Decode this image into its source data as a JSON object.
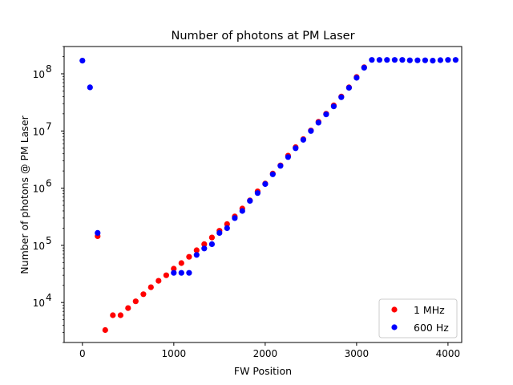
{
  "chart_data": {
    "type": "scatter",
    "title": "Number of photons at PM Laser",
    "xlabel": "FW Position",
    "ylabel": "Number of photons @ PM Laser",
    "xlim": [
      -200,
      4150
    ],
    "ylim": [
      2000,
      300000000
    ],
    "yscale": "log",
    "grid": false,
    "legend_position": "bottom-right",
    "x_ticks": [
      {
        "value": 0,
        "label": "0"
      },
      {
        "value": 1000,
        "label": "1000"
      },
      {
        "value": 2000,
        "label": "2000"
      },
      {
        "value": 3000,
        "label": "3000"
      },
      {
        "value": 4000,
        "label": "4000"
      }
    ],
    "y_ticks": [
      {
        "value": 10000,
        "label": "10",
        "exp": "4"
      },
      {
        "value": 100000,
        "label": "10",
        "exp": "5"
      },
      {
        "value": 1000000,
        "label": "10",
        "exp": "6"
      },
      {
        "value": 10000000,
        "label": "10",
        "exp": "7"
      },
      {
        "value": 100000000,
        "label": "10",
        "exp": "8"
      }
    ],
    "series": [
      {
        "name": "1 MHz",
        "color": "#ff0000",
        "points": [
          [
            167,
            145000
          ],
          [
            250,
            3300
          ],
          [
            333,
            6000
          ],
          [
            417,
            6000
          ],
          [
            500,
            8000
          ],
          [
            583,
            10500
          ],
          [
            667,
            14000
          ],
          [
            750,
            18500
          ],
          [
            833,
            24000
          ],
          [
            917,
            30000
          ],
          [
            1000,
            39000
          ],
          [
            1083,
            49000
          ],
          [
            1167,
            63000
          ],
          [
            1250,
            82000
          ],
          [
            1333,
            105000
          ],
          [
            1417,
            137000
          ],
          [
            1500,
            180000
          ],
          [
            1583,
            235000
          ],
          [
            1667,
            320000
          ],
          [
            1750,
            440000
          ],
          [
            1833,
            610000
          ],
          [
            1917,
            880000
          ],
          [
            2000,
            1200000
          ],
          [
            2083,
            1800000
          ],
          [
            2167,
            2500000
          ],
          [
            2250,
            3700000
          ],
          [
            2333,
            5200000
          ],
          [
            2417,
            7200000
          ],
          [
            2500,
            10200000
          ],
          [
            2583,
            14500000
          ],
          [
            2667,
            20000000
          ],
          [
            2750,
            28000000
          ],
          [
            2833,
            40000000
          ],
          [
            2917,
            58000000
          ],
          [
            3000,
            88000000
          ],
          [
            3083,
            130000000
          ]
        ]
      },
      {
        "name": "600 Hz",
        "color": "#0000ff",
        "points": [
          [
            0,
            170000000
          ],
          [
            83,
            58000000
          ],
          [
            167,
            165000
          ],
          [
            1000,
            33000
          ],
          [
            1083,
            33000
          ],
          [
            1167,
            33000
          ],
          [
            1250,
            68000
          ],
          [
            1333,
            88000
          ],
          [
            1417,
            105000
          ],
          [
            1500,
            165000
          ],
          [
            1583,
            200000
          ],
          [
            1667,
            300000
          ],
          [
            1750,
            400000
          ],
          [
            1833,
            600000
          ],
          [
            1917,
            820000
          ],
          [
            2000,
            1180000
          ],
          [
            2083,
            1750000
          ],
          [
            2167,
            2450000
          ],
          [
            2250,
            3500000
          ],
          [
            2333,
            5000000
          ],
          [
            2417,
            7000000
          ],
          [
            2500,
            10000000
          ],
          [
            2583,
            14000000
          ],
          [
            2667,
            19500000
          ],
          [
            2750,
            27000000
          ],
          [
            2833,
            39000000
          ],
          [
            2917,
            57000000
          ],
          [
            3000,
            85000000
          ],
          [
            3083,
            128000000
          ],
          [
            3167,
            175000000
          ],
          [
            3250,
            175000000
          ],
          [
            3333,
            175000000
          ],
          [
            3417,
            175000000
          ],
          [
            3500,
            175000000
          ],
          [
            3583,
            172000000
          ],
          [
            3667,
            172000000
          ],
          [
            3750,
            172000000
          ],
          [
            3833,
            170000000
          ],
          [
            3917,
            173000000
          ],
          [
            4000,
            175000000
          ],
          [
            4083,
            175000000
          ]
        ]
      }
    ]
  }
}
